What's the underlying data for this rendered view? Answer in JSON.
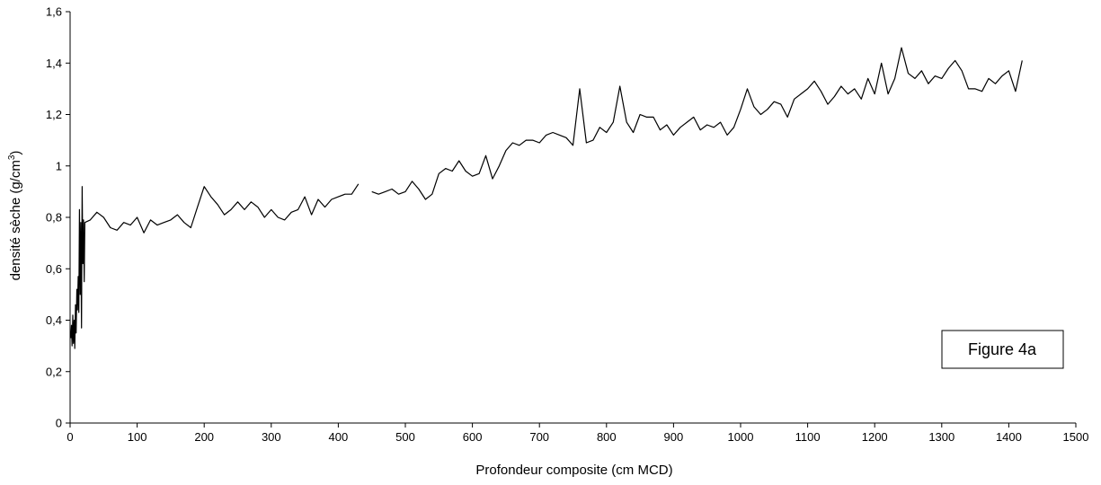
{
  "chart_data": {
    "type": "line",
    "xlabel": "Profondeur composite (cm MCD)",
    "ylabel_main": "densité sèche (g/cm",
    "ylabel_sup": "3",
    "ylabel_close": ")",
    "xlim": [
      0,
      1500
    ],
    "ylim": [
      0,
      1.6
    ],
    "x_ticks": [
      0,
      100,
      200,
      300,
      400,
      500,
      600,
      700,
      800,
      900,
      1000,
      1100,
      1200,
      1300,
      1400,
      1500
    ],
    "x_tick_labels": [
      "0",
      "100",
      "200",
      "300",
      "400",
      "500",
      "600",
      "700",
      "800",
      "900",
      "1000",
      "1100",
      "1200",
      "1300",
      "1400",
      "1500"
    ],
    "y_ticks": [
      0,
      0.2,
      0.4,
      0.6,
      0.8,
      1.0,
      1.2,
      1.4,
      1.6
    ],
    "y_tick_labels": [
      "0",
      "0,2",
      "0,4",
      "0,6",
      "0,8",
      "1",
      "1,2",
      "1,4",
      "1,6"
    ],
    "grid": false,
    "annotation": "Figure 4a",
    "series": [
      {
        "segments": [
          [
            [
              1,
              0.33
            ],
            [
              2,
              0.38
            ],
            [
              3,
              0.3
            ],
            [
              4,
              0.42
            ],
            [
              5,
              0.31
            ],
            [
              6,
              0.4
            ],
            [
              7,
              0.29
            ],
            [
              8,
              0.46
            ],
            [
              9,
              0.35
            ],
            [
              10,
              0.52
            ],
            [
              11,
              0.44
            ],
            [
              12,
              0.57
            ],
            [
              13,
              0.43
            ],
            [
              14,
              0.83
            ],
            [
              15,
              0.5
            ],
            [
              16,
              0.78
            ],
            [
              17,
              0.37
            ],
            [
              18,
              0.92
            ],
            [
              19,
              0.62
            ],
            [
              20,
              0.79
            ],
            [
              21,
              0.55
            ],
            [
              22,
              0.78
            ],
            [
              30,
              0.79
            ],
            [
              40,
              0.82
            ],
            [
              50,
              0.8
            ],
            [
              60,
              0.76
            ],
            [
              70,
              0.75
            ],
            [
              80,
              0.78
            ],
            [
              90,
              0.77
            ],
            [
              100,
              0.8
            ],
            [
              110,
              0.74
            ],
            [
              120,
              0.79
            ],
            [
              130,
              0.77
            ],
            [
              140,
              0.78
            ],
            [
              150,
              0.79
            ],
            [
              160,
              0.81
            ],
            [
              170,
              0.78
            ],
            [
              180,
              0.76
            ],
            [
              190,
              0.84
            ],
            [
              200,
              0.92
            ],
            [
              210,
              0.88
            ],
            [
              220,
              0.85
            ],
            [
              230,
              0.81
            ],
            [
              240,
              0.83
            ],
            [
              250,
              0.86
            ],
            [
              260,
              0.83
            ],
            [
              270,
              0.86
            ],
            [
              280,
              0.84
            ],
            [
              290,
              0.8
            ],
            [
              300,
              0.83
            ],
            [
              310,
              0.8
            ],
            [
              320,
              0.79
            ],
            [
              330,
              0.82
            ],
            [
              340,
              0.83
            ],
            [
              350,
              0.88
            ],
            [
              360,
              0.81
            ],
            [
              370,
              0.87
            ],
            [
              380,
              0.84
            ],
            [
              390,
              0.87
            ],
            [
              400,
              0.88
            ],
            [
              410,
              0.89
            ],
            [
              420,
              0.89
            ],
            [
              430,
              0.93
            ]
          ],
          [
            [
              450,
              0.9
            ],
            [
              460,
              0.89
            ],
            [
              470,
              0.9
            ],
            [
              480,
              0.91
            ],
            [
              490,
              0.89
            ],
            [
              500,
              0.9
            ],
            [
              510,
              0.94
            ],
            [
              520,
              0.91
            ],
            [
              530,
              0.87
            ],
            [
              540,
              0.89
            ],
            [
              550,
              0.97
            ],
            [
              560,
              0.99
            ],
            [
              570,
              0.98
            ],
            [
              580,
              1.02
            ],
            [
              590,
              0.98
            ],
            [
              600,
              0.96
            ],
            [
              610,
              0.97
            ],
            [
              620,
              1.04
            ],
            [
              630,
              0.95
            ],
            [
              640,
              1.0
            ],
            [
              650,
              1.06
            ],
            [
              660,
              1.09
            ],
            [
              670,
              1.08
            ],
            [
              680,
              1.1
            ],
            [
              690,
              1.1
            ],
            [
              700,
              1.09
            ],
            [
              710,
              1.12
            ],
            [
              720,
              1.13
            ],
            [
              730,
              1.12
            ],
            [
              740,
              1.11
            ],
            [
              750,
              1.08
            ],
            [
              760,
              1.3
            ],
            [
              770,
              1.09
            ],
            [
              780,
              1.1
            ],
            [
              790,
              1.15
            ],
            [
              800,
              1.13
            ],
            [
              810,
              1.17
            ],
            [
              820,
              1.31
            ],
            [
              830,
              1.17
            ],
            [
              840,
              1.13
            ],
            [
              850,
              1.2
            ],
            [
              860,
              1.19
            ],
            [
              870,
              1.19
            ],
            [
              880,
              1.14
            ],
            [
              890,
              1.16
            ],
            [
              900,
              1.12
            ],
            [
              910,
              1.15
            ],
            [
              920,
              1.17
            ],
            [
              930,
              1.19
            ],
            [
              940,
              1.14
            ],
            [
              950,
              1.16
            ],
            [
              960,
              1.15
            ],
            [
              970,
              1.17
            ],
            [
              980,
              1.12
            ],
            [
              990,
              1.15
            ],
            [
              1000,
              1.22
            ],
            [
              1010,
              1.3
            ],
            [
              1020,
              1.23
            ],
            [
              1030,
              1.2
            ],
            [
              1040,
              1.22
            ],
            [
              1050,
              1.25
            ],
            [
              1060,
              1.24
            ],
            [
              1070,
              1.19
            ],
            [
              1080,
              1.26
            ],
            [
              1090,
              1.28
            ],
            [
              1100,
              1.3
            ],
            [
              1110,
              1.33
            ],
            [
              1120,
              1.29
            ],
            [
              1130,
              1.24
            ],
            [
              1140,
              1.27
            ],
            [
              1150,
              1.31
            ],
            [
              1160,
              1.28
            ],
            [
              1170,
              1.3
            ],
            [
              1180,
              1.26
            ],
            [
              1190,
              1.34
            ],
            [
              1200,
              1.28
            ],
            [
              1210,
              1.4
            ],
            [
              1220,
              1.28
            ],
            [
              1230,
              1.34
            ],
            [
              1240,
              1.46
            ],
            [
              1250,
              1.36
            ],
            [
              1260,
              1.34
            ],
            [
              1270,
              1.37
            ],
            [
              1280,
              1.32
            ],
            [
              1290,
              1.35
            ],
            [
              1300,
              1.34
            ],
            [
              1310,
              1.38
            ],
            [
              1320,
              1.41
            ],
            [
              1330,
              1.37
            ],
            [
              1340,
              1.3
            ],
            [
              1350,
              1.3
            ],
            [
              1360,
              1.29
            ],
            [
              1370,
              1.34
            ],
            [
              1380,
              1.32
            ],
            [
              1390,
              1.35
            ],
            [
              1400,
              1.37
            ],
            [
              1410,
              1.29
            ],
            [
              1420,
              1.41
            ]
          ]
        ]
      }
    ]
  }
}
